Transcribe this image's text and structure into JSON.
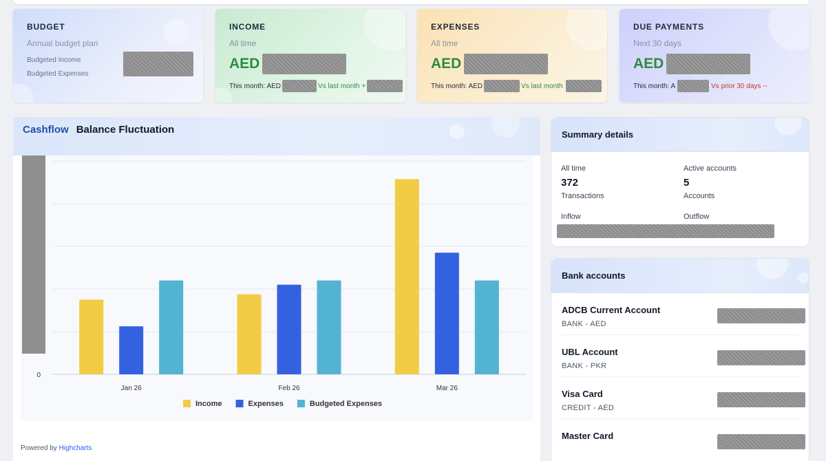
{
  "cards": {
    "budget": {
      "title": "BUDGET",
      "subtitle": "Annual budget plan",
      "line1": "Budgeted Income",
      "line2": "Budgeted Expenses"
    },
    "income": {
      "title": "INCOME",
      "subtitle": "All time",
      "currency": "AED",
      "foot_prefix": "This month: AED",
      "foot_compare": "Vs last month +"
    },
    "expenses": {
      "title": "EXPENSES",
      "subtitle": "All time",
      "currency": "AED",
      "foot_prefix": "This month: AED",
      "foot_compare": "Vs last month"
    },
    "due": {
      "title": "DUE PAYMENTS",
      "subtitle": "Next 30 days",
      "currency": "AED",
      "foot_prefix": "This month: A",
      "foot_compare": "Vs prior 30 days --"
    }
  },
  "chart_panel": {
    "brand": "Cashflow",
    "title": "Balance Fluctuation",
    "powered_prefix": "Powered by",
    "powered_link": "Highcharts"
  },
  "chart_data": {
    "type": "bar",
    "categories": [
      "Jan 26",
      "Feb 26",
      "Mar 26"
    ],
    "series": [
      {
        "name": "Income",
        "color": "#f2cc45",
        "values": [
          35,
          37.5,
          91.5
        ]
      },
      {
        "name": "Expenses",
        "color": "#3461e0",
        "values": [
          22.5,
          42,
          57
        ]
      },
      {
        "name": "Budgeted Expenses",
        "color": "#52b3d3",
        "values": [
          44,
          44,
          44
        ]
      }
    ],
    "ylim": [
      0,
      100
    ],
    "y_zero_label": "0",
    "grid": true,
    "legend": "bottom-center"
  },
  "summary": {
    "title": "Summary details",
    "all_time_label": "All time",
    "transactions_value": "372",
    "transactions_label": "Transactions",
    "active_label": "Active accounts",
    "accounts_value": "5",
    "accounts_label": "Accounts",
    "inflow_label": "Inflow",
    "outflow_label": "Outflow"
  },
  "banks": {
    "title": "Bank accounts",
    "items": [
      {
        "name": "ADCB Current Account",
        "type": "BANK - AED"
      },
      {
        "name": "UBL Account",
        "type": "BANK - PKR"
      },
      {
        "name": "Visa Card",
        "type": "CREDIT - AED"
      },
      {
        "name": "Master Card",
        "type": ""
      }
    ]
  }
}
